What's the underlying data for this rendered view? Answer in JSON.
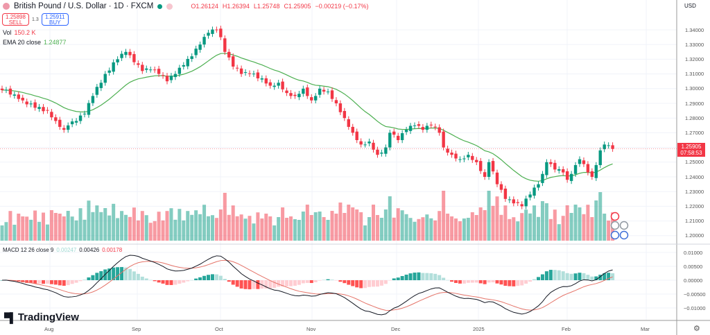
{
  "header": {
    "title": "British Pound / U.S. Dollar · 1D · FXCM",
    "open": "O1.26124",
    "high": "H1.26394",
    "low": "L1.25748",
    "close": "C1.25905",
    "change": "−0.00219 (−0.17%)"
  },
  "trade": {
    "sell_price": "1.25898",
    "sell_label": "SELL",
    "spread": "1.3",
    "buy_price": "1.25911",
    "buy_label": "BUY"
  },
  "indicators": {
    "vol_label": "Vol",
    "vol_value": "150.2 K",
    "ema_label": "EMA 20 close",
    "ema_value": "1.24877",
    "macd_label": "MACD 12 26 close 9",
    "macd_hist": "0.00247",
    "macd_line": "0.00426",
    "macd_signal": "0.00178"
  },
  "price_scale": {
    "currency": "USD",
    "last_price": "1.25905",
    "countdown": "07:58:53",
    "ticks": [
      "1.34000",
      "1.33000",
      "1.32000",
      "1.31000",
      "1.30000",
      "1.29000",
      "1.28000",
      "1.27000",
      "1.25000",
      "1.24000",
      "1.23000",
      "1.22000",
      "1.21000",
      "1.20000"
    ],
    "macd_ticks": [
      "0.01000",
      "0.00500",
      "0.00000",
      "−0.00500",
      "−0.01000"
    ]
  },
  "time_axis": [
    "Aug",
    "Sep",
    "Oct",
    "Nov",
    "Dec",
    "2025",
    "Feb",
    "Mar"
  ],
  "branding": "TradingView",
  "colors": {
    "up": "#089981",
    "down": "#f23645",
    "ema": "#4caf50",
    "macd": "#131722",
    "signal": "#e57368"
  },
  "chart_data": {
    "type": "candlestick",
    "symbol": "GBPUSD",
    "ylim": [
      1.195,
      1.345
    ],
    "key_closes": [
      [
        0,
        1.299
      ],
      [
        3,
        1.296
      ],
      [
        5,
        1.292
      ],
      [
        8,
        1.287
      ],
      [
        11,
        1.285
      ],
      [
        13,
        1.278
      ],
      [
        15,
        1.272
      ],
      [
        16,
        1.275
      ],
      [
        18,
        1.278
      ],
      [
        20,
        1.283
      ],
      [
        22,
        1.295
      ],
      [
        25,
        1.31
      ],
      [
        28,
        1.32
      ],
      [
        30,
        1.325
      ],
      [
        32,
        1.318
      ],
      [
        34,
        1.312
      ],
      [
        36,
        1.313
      ],
      [
        38,
        1.31
      ],
      [
        40,
        1.305
      ],
      [
        42,
        1.31
      ],
      [
        44,
        1.316
      ],
      [
        46,
        1.322
      ],
      [
        48,
        1.33
      ],
      [
        50,
        1.338
      ],
      [
        52,
        1.34
      ],
      [
        53,
        1.335
      ],
      [
        54,
        1.325
      ],
      [
        56,
        1.315
      ],
      [
        58,
        1.31
      ],
      [
        60,
        1.31
      ],
      [
        63,
        1.307
      ],
      [
        65,
        1.302
      ],
      [
        67,
        1.304
      ],
      [
        69,
        1.297
      ],
      [
        71,
        1.295
      ],
      [
        73,
        1.3
      ],
      [
        75,
        1.292
      ],
      [
        77,
        1.3
      ],
      [
        79,
        1.298
      ],
      [
        81,
        1.29
      ],
      [
        83,
        1.28
      ],
      [
        85,
        1.27
      ],
      [
        87,
        1.262
      ],
      [
        89,
        1.264
      ],
      [
        91,
        1.255
      ],
      [
        93,
        1.26
      ],
      [
        94,
        1.27
      ],
      [
        96,
        1.265
      ],
      [
        98,
        1.272
      ],
      [
        100,
        1.275
      ],
      [
        102,
        1.272
      ],
      [
        104,
        1.275
      ],
      [
        106,
        1.27
      ],
      [
        107,
        1.26
      ],
      [
        109,
        1.255
      ],
      [
        111,
        1.252
      ],
      [
        113,
        1.255
      ],
      [
        115,
        1.25
      ],
      [
        117,
        1.24
      ],
      [
        118,
        1.25
      ],
      [
        120,
        1.235
      ],
      [
        122,
        1.225
      ],
      [
        124,
        1.222
      ],
      [
        126,
        1.22
      ],
      [
        128,
        1.228
      ],
      [
        130,
        1.235
      ],
      [
        131,
        1.242
      ],
      [
        132,
        1.25
      ],
      [
        134,
        1.245
      ],
      [
        136,
        1.243
      ],
      [
        137,
        1.238
      ],
      [
        139,
        1.248
      ],
      [
        140,
        1.252
      ],
      [
        142,
        1.243
      ],
      [
        143,
        1.24
      ],
      [
        144,
        1.248
      ],
      [
        145,
        1.258
      ],
      [
        146,
        1.262
      ],
      [
        147,
        1.2615
      ],
      [
        148,
        1.25905
      ]
    ]
  }
}
